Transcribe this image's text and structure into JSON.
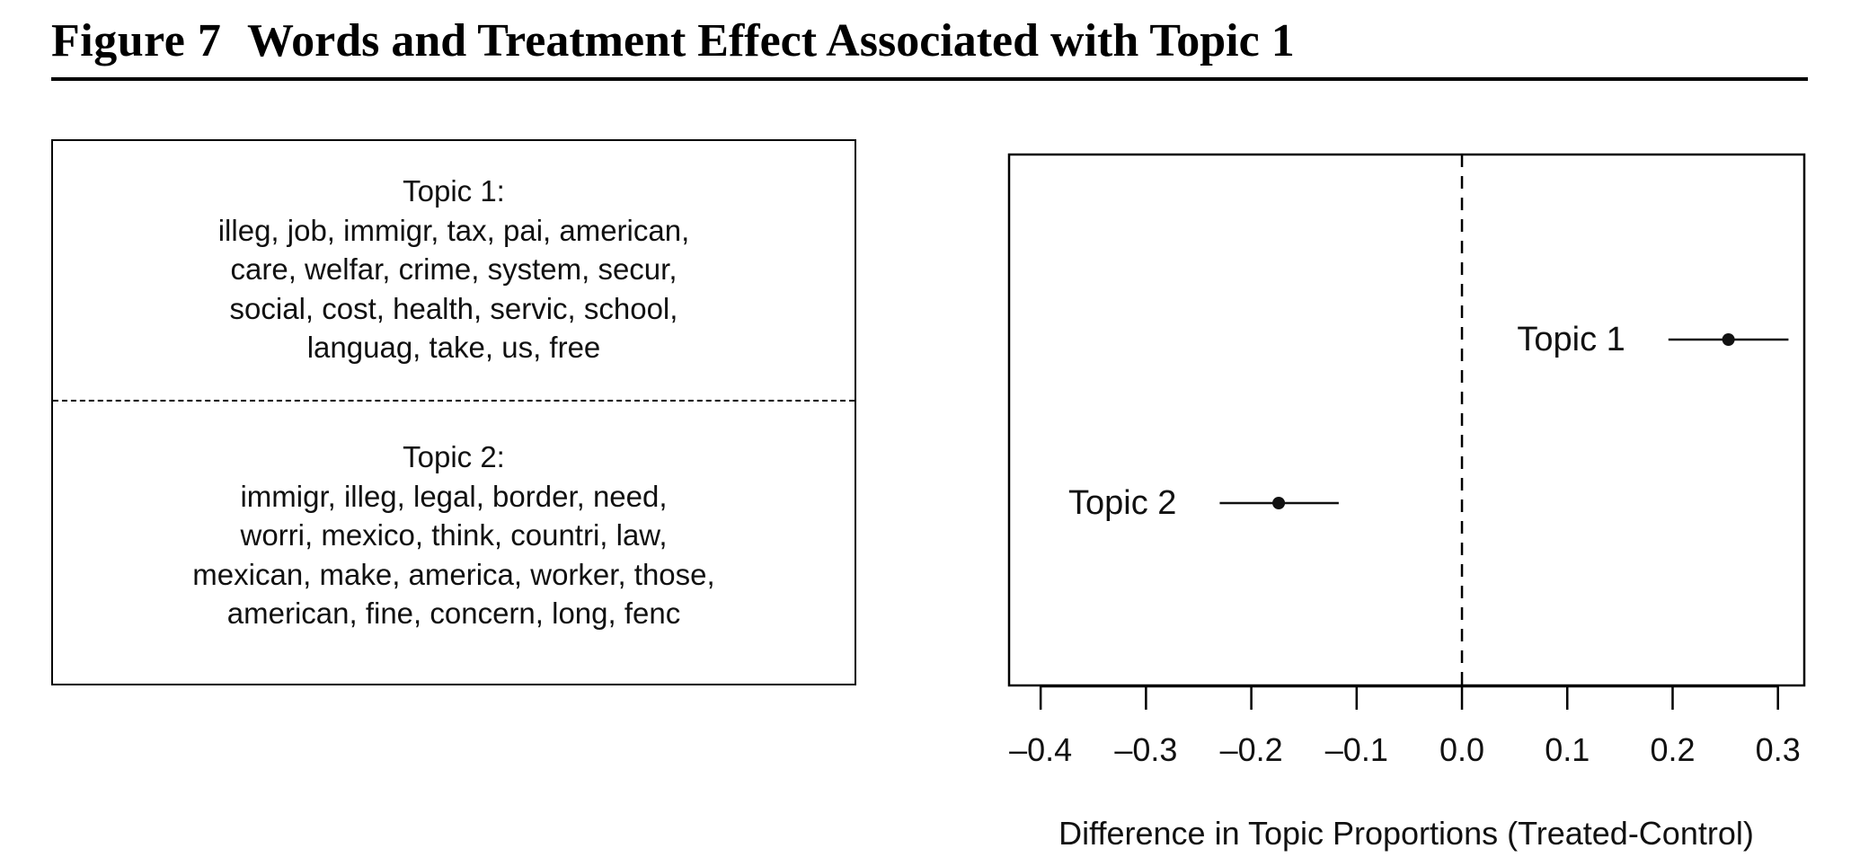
{
  "figure": {
    "label": "Figure 7",
    "title": "Words and Treatment Effect Associated with Topic 1"
  },
  "topics_panel": {
    "topics": [
      {
        "heading": "Topic 1:",
        "lines": [
          "illeg, job, immigr, tax, pai, american,",
          "care, welfar, crime, system, secur,",
          "social, cost, health, servic, school,",
          "languag, take, us, free"
        ]
      },
      {
        "heading": "Topic 2:",
        "lines": [
          "immigr, illeg, legal, border, need,",
          "worri, mexico, think, countri, law,",
          "mexican, make, america, worker, those,",
          "american, fine, concern, long, fenc"
        ]
      }
    ]
  },
  "chart_data": {
    "type": "scatter",
    "xlabel": "Difference in Topic Proportions (Treated-Control)",
    "xlim": [
      -0.43,
      0.325
    ],
    "xticks": [
      -0.4,
      -0.3,
      -0.2,
      -0.1,
      0.0,
      0.1,
      0.2,
      0.3
    ],
    "xtick_labels": [
      "–0.4",
      "–0.3",
      "–0.2",
      "–0.1",
      "0.0",
      "0.1",
      "0.2",
      "0.3"
    ],
    "reference_line_x": 0,
    "points": [
      {
        "label": "Topic 1",
        "estimate": 0.253,
        "ci_low": 0.196,
        "ci_high": 0.31
      },
      {
        "label": "Topic 2",
        "estimate": -0.174,
        "ci_low": -0.23,
        "ci_high": -0.117
      }
    ],
    "colors": {
      "point": "#111111",
      "line": "#111111",
      "frame": "#000000"
    }
  }
}
